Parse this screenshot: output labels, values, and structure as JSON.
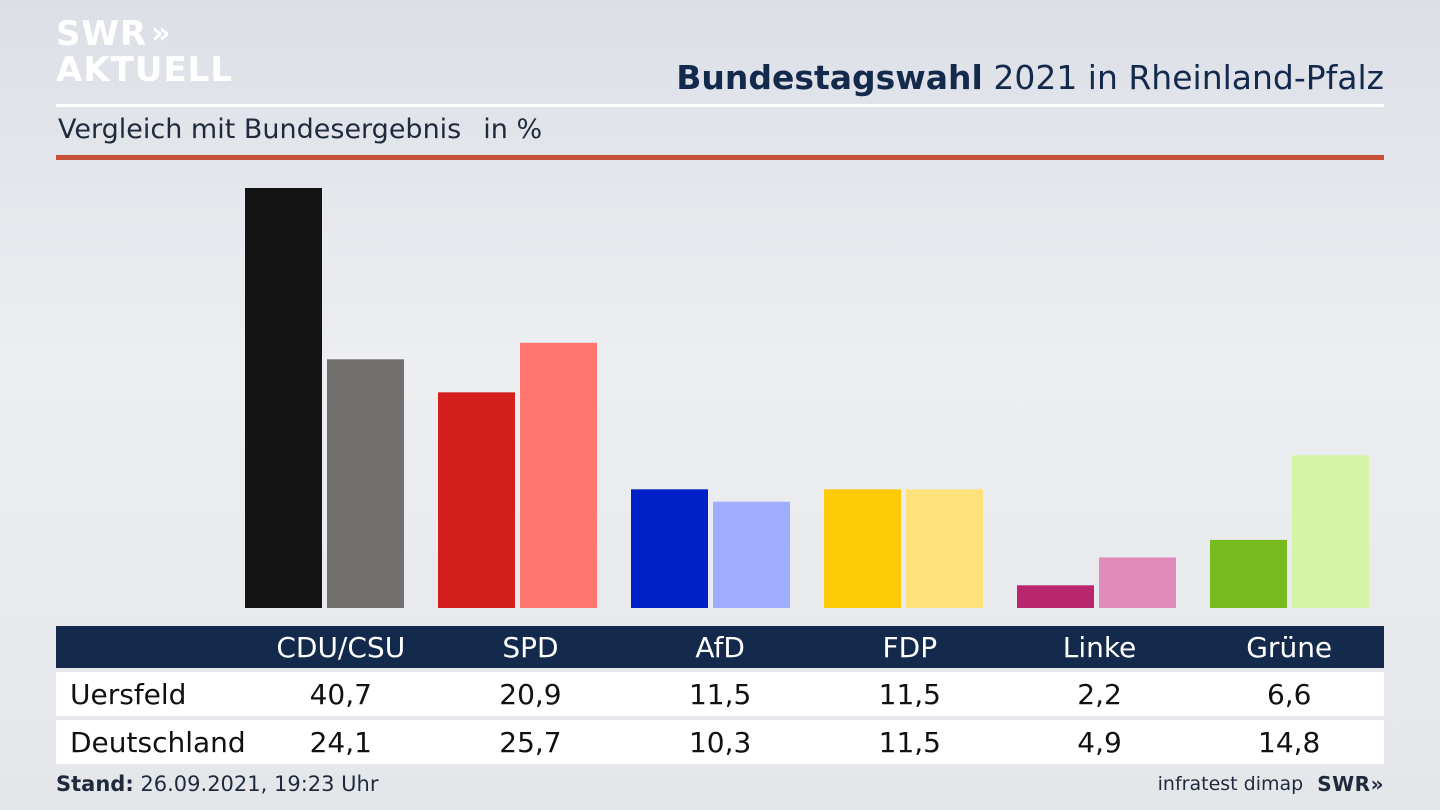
{
  "brand": {
    "line1": "SWR",
    "chevrons": "»",
    "line2": "AKTUELL"
  },
  "header": {
    "title_bold": "Bundestagswahl",
    "title_rest": " 2021 in Rheinland-Pfalz"
  },
  "subheader": {
    "text": "Vergleich mit Bundesergebnis",
    "unit": "in %"
  },
  "chart_data": {
    "type": "bar",
    "title": "Bundestagswahl 2021 in Rheinland-Pfalz",
    "subtitle": "Vergleich mit Bundesergebnis in %",
    "categories": [
      "CDU/CSU",
      "SPD",
      "AfD",
      "FDP",
      "Linke",
      "Grüne"
    ],
    "series": [
      {
        "name": "Uersfeld",
        "values": [
          40.7,
          20.9,
          11.5,
          11.5,
          2.2,
          6.6
        ],
        "colors": [
          "#141414",
          "#d41f1f",
          "#0021c8",
          "#ffcb08",
          "#b8276e",
          "#77bb20"
        ]
      },
      {
        "name": "Deutschland",
        "values": [
          24.1,
          25.7,
          10.3,
          11.5,
          4.9,
          14.8
        ],
        "colors": [
          "#72706e",
          "#ff7570",
          "#a1aeff",
          "#ffe27a",
          "#e08bb9",
          "#d5f4a8"
        ]
      }
    ],
    "value_labels": [
      [
        "40,7",
        "20,9",
        "11,5",
        "11,5",
        "2,2",
        "6,6"
      ],
      [
        "24,1",
        "25,7",
        "10,3",
        "11,5",
        "4,9",
        "14,8"
      ]
    ],
    "ylim": [
      0,
      40.7
    ],
    "grid": false,
    "legend": "table-below"
  },
  "footer": {
    "stand_label": "Stand:",
    "stand_value": " 26.09.2021, 19:23 Uhr",
    "source": "infratest dimap",
    "swr": "SWR»"
  }
}
